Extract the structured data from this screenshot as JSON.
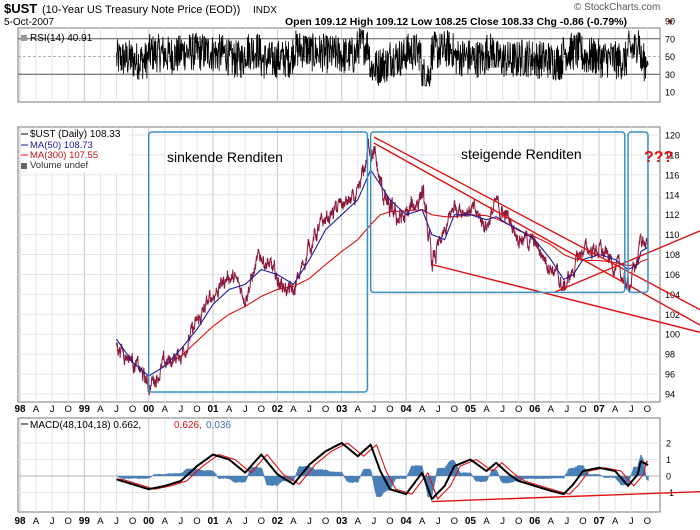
{
  "header": {
    "symbol": "$UST",
    "description": "(10-Year US Treasury Note Price (EOD))",
    "exchange": "INDX",
    "date": "5-Oct-2007",
    "quote": "Open 109.12  High 109.12  Low 108.25  Close 108.33  Chg -0.86 (-0.79%)",
    "quote_arrow": "▼",
    "watermark": "© StockCharts.com"
  },
  "rsi": {
    "label": "RSI(14) 40.91",
    "ticks": [
      "70",
      "50",
      "30",
      "10",
      "90"
    ]
  },
  "main_legend": {
    "price": "$UST (Daily) 108.33",
    "ma50": "MA(50) 108.73",
    "ma300": "MA(300) 107.55",
    "volume": "Volume undef"
  },
  "annotations": {
    "falling": "sinkende Renditen",
    "rising": "steigende Renditen",
    "question": "???"
  },
  "macd": {
    "label_base": "MACD(48,104,18) 0.662,",
    "label_signal": "0.626,",
    "label_hist": "0.036"
  },
  "colors": {
    "price": "#8b1a3a",
    "ma50": "#1a1aa0",
    "ma300": "#e01010",
    "box": "#3a8fc0",
    "trend": "#e01010",
    "hist": "#4a80b8"
  },
  "chart_data": {
    "type": "line",
    "title": "$UST (10-Year US Treasury Note Price (EOD)) INDX",
    "x_labels": [
      "98",
      "A",
      "J",
      "O",
      "99",
      "A",
      "J",
      "O",
      "00",
      "A",
      "J",
      "O",
      "01",
      "A",
      "J",
      "O",
      "02",
      "A",
      "J",
      "O",
      "03",
      "A",
      "J",
      "O",
      "04",
      "A",
      "J",
      "O",
      "05",
      "A",
      "J",
      "O",
      "06",
      "A",
      "J",
      "O",
      "07",
      "A",
      "J",
      "O"
    ],
    "price_ticks": [
      "94",
      "96",
      "98",
      "100",
      "102",
      "104",
      "106",
      "108",
      "110",
      "112",
      "114",
      "116",
      "118",
      "120"
    ],
    "macd_ticks": [
      "2",
      "1",
      "0",
      "-1"
    ],
    "anchors": {
      "dates": [
        1999.5,
        1999.75,
        2000.0,
        2000.25,
        2000.5,
        2000.75,
        2001.0,
        2001.25,
        2001.5,
        2001.75,
        2002.0,
        2002.25,
        2002.5,
        2002.75,
        2003.0,
        2003.25,
        2003.45,
        2003.6,
        2003.75,
        2004.0,
        2004.25,
        2004.4,
        2004.6,
        2004.75,
        2005.0,
        2005.25,
        2005.4,
        2005.6,
        2005.75,
        2006.0,
        2006.25,
        2006.45,
        2006.6,
        2006.75,
        2007.0,
        2007.25,
        2007.45,
        2007.6,
        2007.65,
        2007.76
      ],
      "price": [
        99.0,
        97.5,
        94.8,
        97.0,
        98.0,
        101.0,
        104.0,
        106.0,
        104.0,
        108.0,
        105.5,
        104.0,
        109.0,
        111.5,
        113.0,
        113.5,
        119.5,
        115.0,
        112.0,
        111.5,
        114.5,
        107.0,
        110.0,
        113.0,
        112.5,
        111.0,
        113.0,
        111.5,
        110.0,
        109.0,
        107.0,
        104.5,
        106.5,
        108.5,
        108.5,
        107.0,
        104.8,
        107.5,
        110.0,
        108.33
      ],
      "ma50": [
        99.5,
        97.2,
        95.8,
        96.8,
        98.5,
        100.5,
        103.0,
        104.5,
        105.0,
        106.5,
        106.0,
        105.0,
        107.5,
        110.5,
        112.0,
        113.5,
        116.5,
        115.0,
        113.5,
        112.0,
        112.5,
        110.0,
        109.5,
        112.0,
        112.0,
        111.5,
        111.8,
        111.0,
        110.5,
        109.5,
        107.5,
        105.5,
        106.0,
        107.5,
        108.0,
        107.5,
        106.5,
        107.0,
        108.3,
        108.73
      ],
      "ma300": [
        null,
        null,
        null,
        96.8,
        97.8,
        99.3,
        100.8,
        102.0,
        102.8,
        103.8,
        104.5,
        104.8,
        105.6,
        107.0,
        108.3,
        109.5,
        111.0,
        112.0,
        112.3,
        112.4,
        112.5,
        112.0,
        111.8,
        111.8,
        112.0,
        111.9,
        111.6,
        111.0,
        110.4,
        109.8,
        109.0,
        108.0,
        107.6,
        107.4,
        107.4,
        107.2,
        106.9,
        107.0,
        107.3,
        107.55
      ],
      "macd": [
        -0.2,
        -0.5,
        -0.8,
        -0.6,
        -0.3,
        0.6,
        1.3,
        1.0,
        0.2,
        1.3,
        0.1,
        -0.5,
        0.7,
        1.5,
        2.0,
        1.2,
        1.9,
        0.3,
        -0.8,
        -1.1,
        0.2,
        -1.4,
        -0.6,
        0.6,
        1.0,
        0.3,
        0.8,
        0.1,
        -0.3,
        -0.6,
        -0.9,
        -1.1,
        -0.5,
        0.3,
        0.5,
        0.3,
        -0.6,
        0.1,
        0.9,
        0.662
      ]
    },
    "macd_signal": 0.626,
    "macd_histogram": 0.036,
    "rsi_value": 40.91,
    "trend_lines": [
      {
        "from": [
          2003.5,
          119.8
        ],
        "to": [
          2007.77,
          105.2
        ]
      },
      {
        "from": [
          2003.5,
          119.2
        ],
        "to": [
          2007.77,
          103.8
        ]
      },
      {
        "from": [
          2004.4,
          107.0
        ],
        "to": [
          2007.77,
          101.5
        ]
      },
      {
        "from": [
          2006.3,
          104.2
        ],
        "to": [
          2007.77,
          108.2
        ]
      }
    ],
    "boxes": [
      {
        "x1": 2000.0,
        "x2": 2003.4,
        "y1": 120.3,
        "y2": 94.2
      },
      {
        "x1": 2003.45,
        "x2": 2007.4,
        "y1": 120.3,
        "y2": 104.2
      },
      {
        "x1": 2007.45,
        "x2": 2007.76,
        "y1": 120.3,
        "y2": 104.2
      }
    ],
    "rsi_ticks": [
      70,
      50,
      30
    ]
  }
}
